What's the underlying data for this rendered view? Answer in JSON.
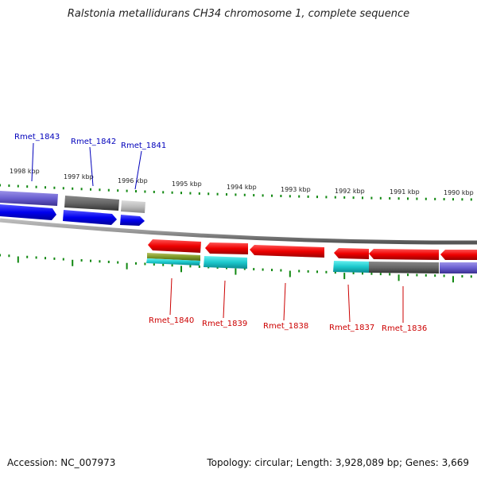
{
  "title": "Ralstonia metallidurans CH34 chromosome 1, complete sequence",
  "accession": "Accession: NC_007973",
  "summary": "Topology: circular; Length: 3,928,089 bp; Genes: 3,669",
  "kbp_ticks": [
    "1998 kbp",
    "1997 kbp",
    "1996 kbp",
    "1995 kbp",
    "1994 kbp",
    "1993 kbp",
    "1992 kbp",
    "1991 kbp",
    "1990 kbp"
  ],
  "forward_genes": [
    "Rmet_1843",
    "Rmet_1842",
    "Rmet_1841"
  ],
  "reverse_genes": [
    "Rmet_1840",
    "Rmet_1839",
    "Rmet_1838",
    "Rmet_1837",
    "Rmet_1836"
  ],
  "colors": {
    "forward_label": "#0000bb",
    "reverse_label": "#cc0000",
    "cds_forward": "#0000ee",
    "cds_reverse": "#ee0000",
    "tick": "#118811",
    "backbone": "#888888"
  }
}
